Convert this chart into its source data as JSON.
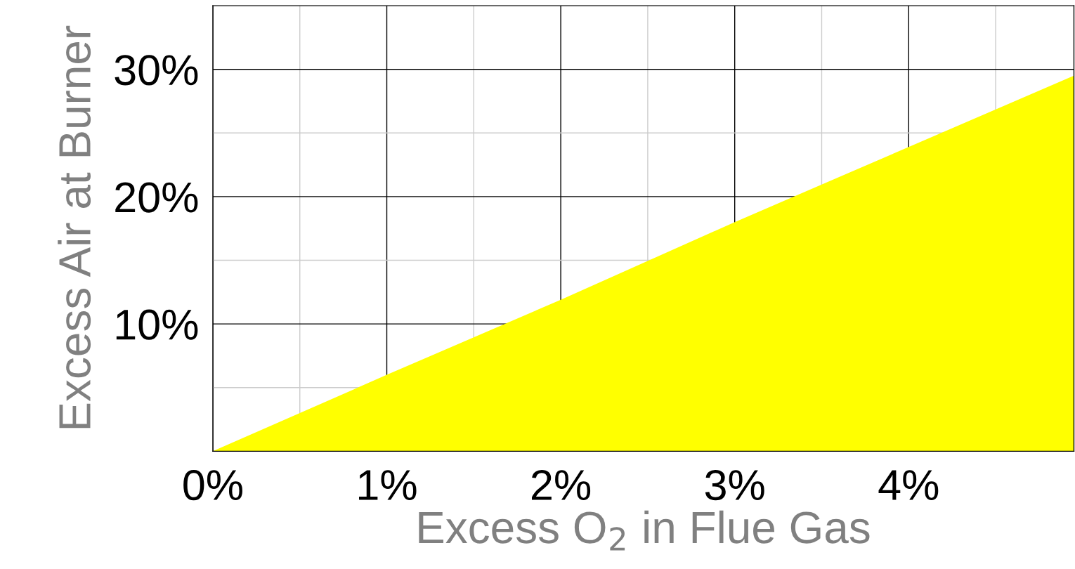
{
  "chart_data": {
    "type": "area",
    "xlabel": "Excess O$_{2}$ in Flue Gas",
    "ylabel": "Excess Air at Burner",
    "x": [
      0,
      1,
      2,
      3,
      4,
      4.95
    ],
    "series": [
      {
        "color": "#ffff00",
        "values": [
          0,
          6,
          11.9,
          18,
          23.9,
          29.5
        ]
      }
    ],
    "xlim": [
      0,
      4.95
    ],
    "ylim": [
      0,
      35
    ],
    "xticks": [
      {
        "value": 0,
        "label": "0%"
      },
      {
        "value": 0.5,
        "label": null
      },
      {
        "value": 1,
        "label": "1%"
      },
      {
        "value": 1.5,
        "label": null
      },
      {
        "value": 2,
        "label": "2%"
      },
      {
        "value": 2.5,
        "label": null
      },
      {
        "value": 3,
        "label": "3%"
      },
      {
        "value": 3.5,
        "label": null
      },
      {
        "value": 4,
        "label": "4%"
      },
      {
        "value": 4.5,
        "label": null
      }
    ],
    "yticks": [
      {
        "value": 5,
        "label": null
      },
      {
        "value": 10,
        "label": "10%"
      },
      {
        "value": 15,
        "label": null
      },
      {
        "value": 20,
        "label": "20%"
      },
      {
        "value": 25,
        "label": null
      },
      {
        "value": 30,
        "label": "30%"
      }
    ],
    "grid": true,
    "legend": false
  }
}
